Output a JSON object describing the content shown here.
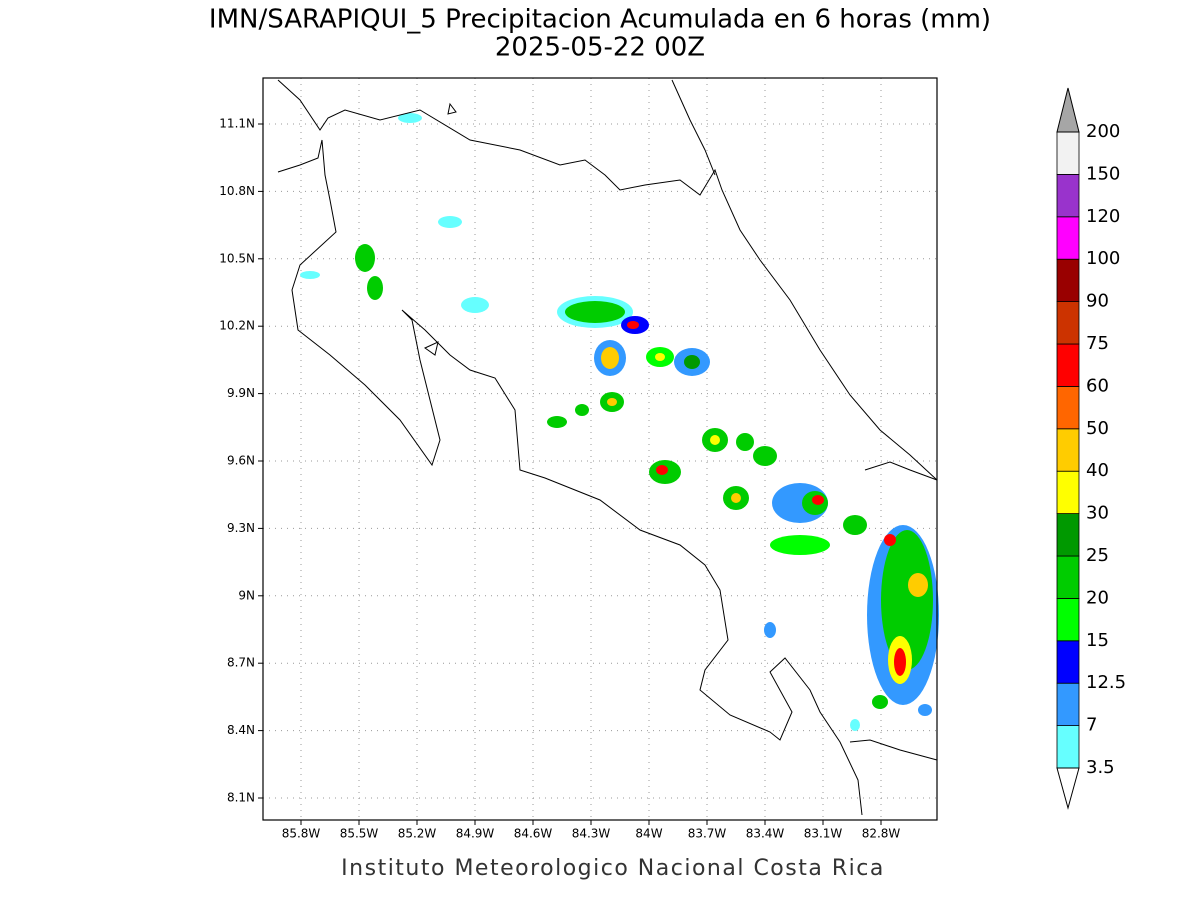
{
  "title": "IMN/SARAPIQUI_5 Precipitacion Acumulada en 6 horas (mm)",
  "subtitle": "2025-05-22 00Z",
  "x_ticks": [
    "85.8W",
    "85.5W",
    "85.2W",
    "84.9W",
    "84.6W",
    "84.3W",
    "84W",
    "83.7W",
    "83.4W",
    "83.1W",
    "82.8W"
  ],
  "y_ticks": [
    "11.1N",
    "10.8N",
    "10.5N",
    "10.2N",
    "9.9N",
    "9.6N",
    "9.3N",
    "9N",
    "8.7N",
    "8.4N",
    "8.1N"
  ],
  "colorbar": {
    "levels": [
      3.5,
      7,
      12.5,
      15,
      20,
      25,
      30,
      40,
      50,
      60,
      75,
      90,
      100,
      120,
      150,
      200
    ],
    "colors": [
      "#66ffff",
      "#3399ff",
      "#0000ff",
      "#00ff00",
      "#00cc00",
      "#009900",
      "#ffff00",
      "#ffcc00",
      "#ff6600",
      "#ff0000",
      "#cc3300",
      "#990000",
      "#ff00ff",
      "#9933cc",
      "#f2f2f2"
    ],
    "under_color": "#ffffff",
    "over_color": "#a6a6a6"
  },
  "footer": "Instituto Meteorologico Nacional Costa Rica"
}
